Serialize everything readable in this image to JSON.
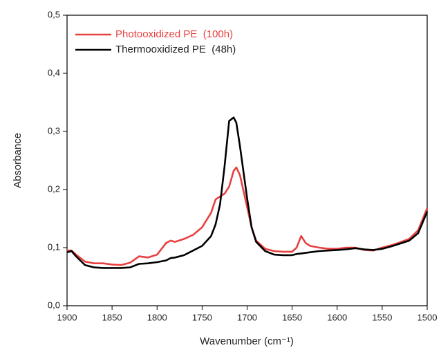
{
  "chart_data": {
    "type": "line",
    "xlabel": "Wavenumber (cm⁻¹)",
    "ylabel": "Absorbance",
    "xlim": [
      1900,
      1500
    ],
    "ylim": [
      0,
      0.5
    ],
    "xticks": [
      1900,
      1850,
      1800,
      1750,
      1700,
      1650,
      1600,
      1550,
      1500
    ],
    "yticks": [
      {
        "value": 0,
        "label": "0,0"
      },
      {
        "value": 0.1,
        "label": "0,1"
      },
      {
        "value": 0.2,
        "label": "0,2"
      },
      {
        "value": 0.3,
        "label": "0,3"
      },
      {
        "value": 0.4,
        "label": "0,4"
      },
      {
        "value": 0.5,
        "label": "0,5"
      }
    ],
    "legend": "upper left",
    "x": [
      1900,
      1895,
      1890,
      1880,
      1870,
      1860,
      1850,
      1840,
      1830,
      1820,
      1810,
      1800,
      1790,
      1785,
      1780,
      1770,
      1760,
      1750,
      1740,
      1735,
      1730,
      1725,
      1720,
      1715,
      1712,
      1708,
      1700,
      1695,
      1690,
      1680,
      1670,
      1660,
      1650,
      1645,
      1640,
      1635,
      1630,
      1620,
      1610,
      1600,
      1590,
      1580,
      1570,
      1560,
      1550,
      1540,
      1530,
      1520,
      1510,
      1500
    ],
    "series": [
      {
        "name": "Photooxidized PE  (100h)",
        "color": "#e8403f",
        "values": [
          0.095,
          0.095,
          0.088,
          0.076,
          0.073,
          0.073,
          0.071,
          0.07,
          0.074,
          0.085,
          0.083,
          0.088,
          0.108,
          0.112,
          0.11,
          0.115,
          0.122,
          0.135,
          0.16,
          0.183,
          0.188,
          0.193,
          0.205,
          0.232,
          0.238,
          0.225,
          0.17,
          0.135,
          0.112,
          0.098,
          0.094,
          0.093,
          0.093,
          0.1,
          0.12,
          0.108,
          0.103,
          0.1,
          0.098,
          0.098,
          0.1,
          0.1,
          0.096,
          0.095,
          0.1,
          0.104,
          0.109,
          0.115,
          0.13,
          0.168
        ]
      },
      {
        "name": "Thermooxidized PE  (48h)",
        "color": "#000000",
        "values": [
          0.092,
          0.094,
          0.085,
          0.07,
          0.066,
          0.065,
          0.065,
          0.065,
          0.066,
          0.072,
          0.073,
          0.075,
          0.078,
          0.082,
          0.083,
          0.087,
          0.095,
          0.103,
          0.12,
          0.14,
          0.175,
          0.24,
          0.318,
          0.324,
          0.315,
          0.275,
          0.185,
          0.135,
          0.11,
          0.094,
          0.088,
          0.087,
          0.087,
          0.089,
          0.09,
          0.091,
          0.092,
          0.094,
          0.095,
          0.096,
          0.097,
          0.099,
          0.097,
          0.096,
          0.098,
          0.102,
          0.107,
          0.112,
          0.125,
          0.162
        ]
      }
    ]
  }
}
